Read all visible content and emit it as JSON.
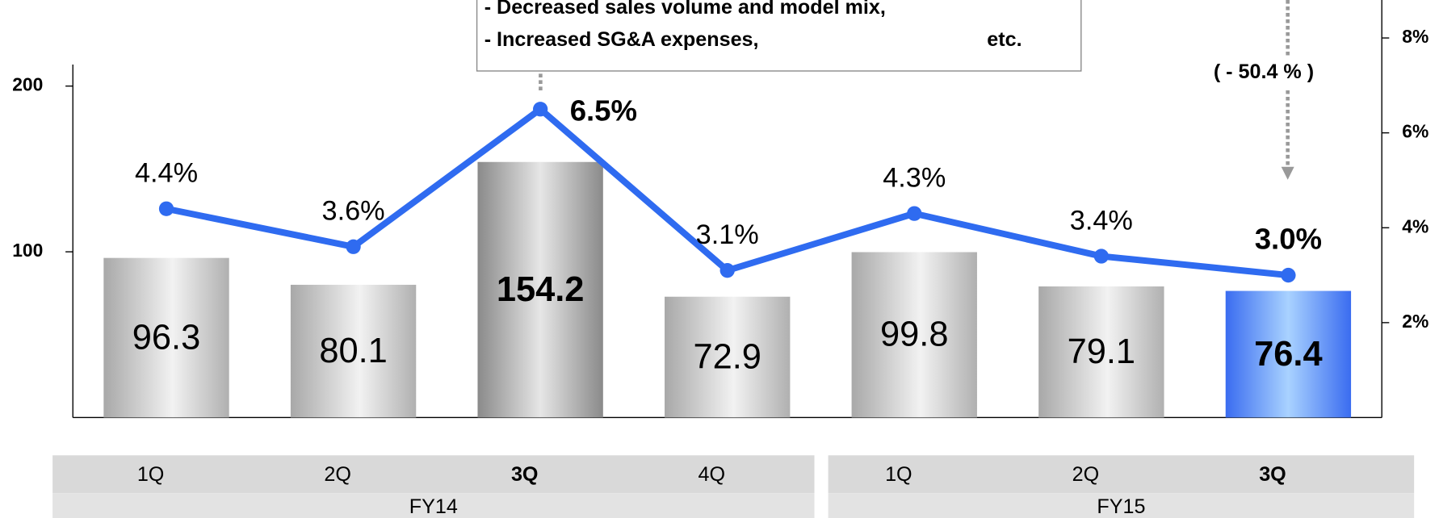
{
  "chart_data": {
    "type": "bar_line",
    "categories": [
      "1Q",
      "2Q",
      "3Q",
      "4Q",
      "1Q",
      "2Q",
      "3Q"
    ],
    "groups": [
      {
        "name": "FY14",
        "span": 4
      },
      {
        "name": "FY15",
        "span": 3
      }
    ],
    "series": [
      {
        "type": "bar",
        "color": "#c8c8c8",
        "values": [
          96.3,
          80.1,
          154.2,
          72.9,
          99.8,
          79.1,
          76.4
        ]
      },
      {
        "type": "line",
        "axis": "y2",
        "color": "#2f6bf0",
        "values": [
          4.4,
          3.6,
          6.5,
          3.1,
          4.3,
          3.4,
          3.0
        ],
        "value_labels": [
          "4.4%",
          "3.6%",
          "6.5%",
          "3.1%",
          "4.3%",
          "3.4%",
          "3.0%"
        ]
      }
    ],
    "ylim": [
      0,
      213
    ],
    "yticks": [
      100,
      200
    ],
    "y2lim": [
      0,
      8.8
    ],
    "y2ticks": [
      {
        "value": 2,
        "label": "2%"
      },
      {
        "value": 4,
        "label": "4%"
      },
      {
        "value": 6,
        "label": "6%"
      },
      {
        "value": 8,
        "label": "8%"
      }
    ],
    "highlight": [
      2,
      6
    ],
    "highlight_color": "#3a6cf0",
    "annotations": [
      "- Decreased sales volume and model mix,",
      "- Increased SG&A expenses,",
      "etc."
    ],
    "change_label": "( - 50.4 % )"
  }
}
